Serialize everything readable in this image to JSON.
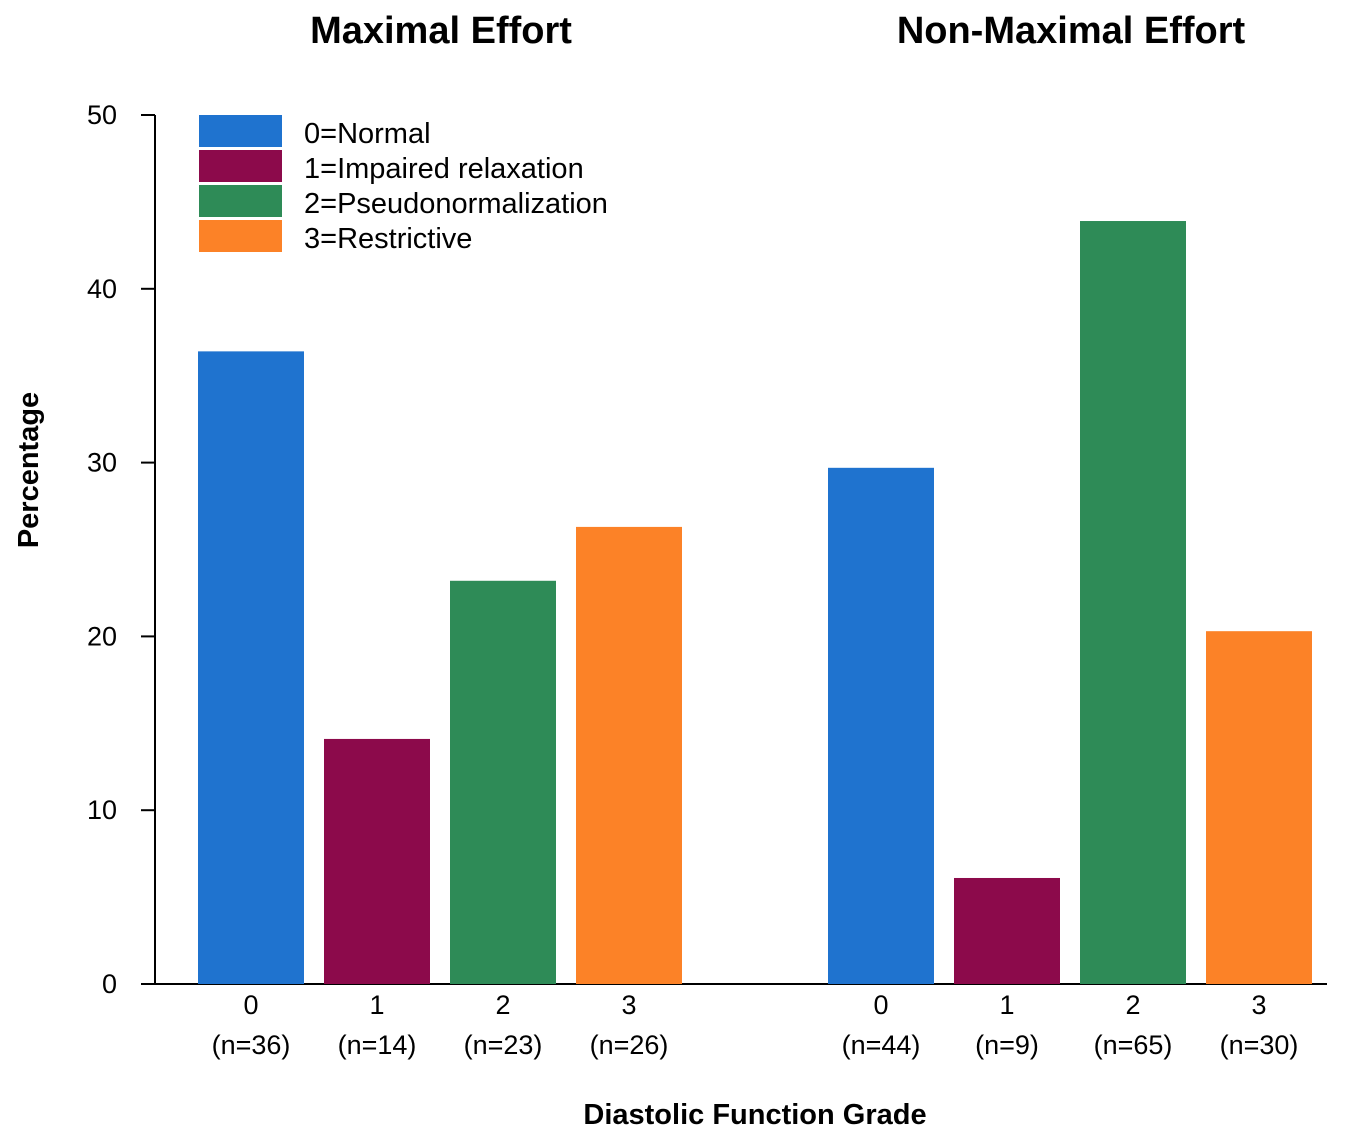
{
  "chart_data": {
    "type": "bar",
    "ylabel": "Percentage",
    "xlabel": "Diastolic Function Grade",
    "ylim": [
      0,
      50
    ],
    "yticks": [
      0,
      10,
      20,
      30,
      40,
      50
    ],
    "grid": false,
    "legend_position": "top-left",
    "legend": [
      {
        "label": "0=Normal",
        "color": "#1f73cf"
      },
      {
        "label": "1=Impaired relaxation",
        "color": "#8c0a4b"
      },
      {
        "label": "2=Pseudonormalization",
        "color": "#2e8b57"
      },
      {
        "label": "3=Restrictive",
        "color": "#fc8227"
      }
    ],
    "panels": [
      {
        "title": "Maximal Effort",
        "categories": [
          "0",
          "1",
          "2",
          "3"
        ],
        "n_labels": [
          "(n=36)",
          "(n=14)",
          "(n=23)",
          "(n=26)"
        ],
        "values": [
          36.4,
          14.1,
          23.2,
          26.3
        ]
      },
      {
        "title": "Non-Maximal Effort",
        "categories": [
          "0",
          "1",
          "2",
          "3"
        ],
        "n_labels": [
          "(n=44)",
          "(n=9)",
          "(n=65)",
          "(n=30)"
        ],
        "values": [
          29.7,
          6.1,
          43.9,
          20.3
        ]
      }
    ]
  }
}
